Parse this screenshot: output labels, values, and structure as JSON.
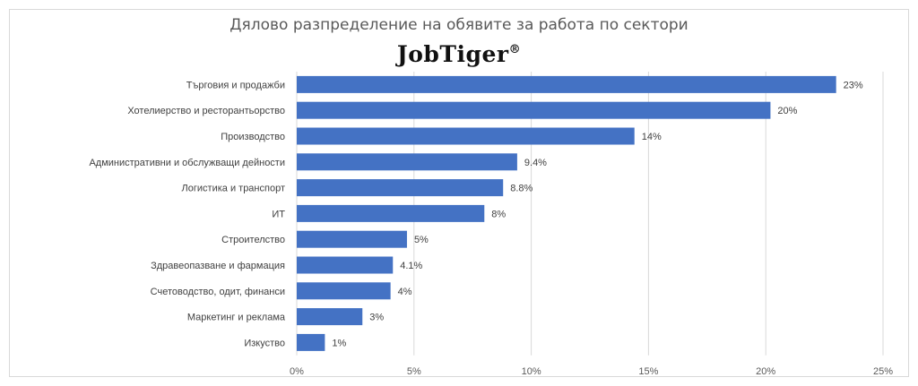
{
  "chart_data": {
    "type": "bar",
    "orientation": "horizontal",
    "title": "Дялово разпределение на обявите за работа по сектори",
    "logo_text": "JobTiger",
    "logo_mark": "®",
    "categories": [
      "Търговия и продажби",
      "Хотелиерство и ресторантьорство",
      "Производство",
      "Административни и обслужващи дейности",
      "Логистика и транспорт",
      "ИТ",
      "Строителство",
      "Здравеопазване и фармация",
      "Счетоводство, одит, финанси",
      "Маркетинг и реклама",
      "Изкуство"
    ],
    "values": [
      23,
      20.2,
      14.4,
      9.4,
      8.8,
      8,
      4.7,
      4.1,
      4,
      2.8,
      1.2
    ],
    "data_labels": [
      "23%",
      "20%",
      "14%",
      "9.4%",
      "8.8%",
      "8%",
      "5%",
      "4.1%",
      "4%",
      "3%",
      "1%"
    ],
    "xlim": [
      0,
      25
    ],
    "xticks": [
      0,
      5,
      10,
      15,
      20,
      25
    ],
    "xtick_labels": [
      "0%",
      "5%",
      "10%",
      "15%",
      "20%",
      "25%"
    ],
    "grid": true,
    "bar_color": "#4472c4",
    "grid_color": "#d9d9d9"
  }
}
